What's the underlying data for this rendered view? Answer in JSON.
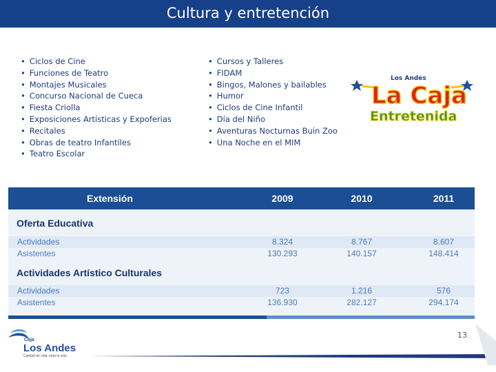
{
  "slide": {
    "title": "Cultura y entretención",
    "page_number": "13"
  },
  "left_list": [
    "Ciclos de Cine",
    "Funciones de Teatro",
    "Montajes Musicales",
    "Concurso Nacional de Cueca",
    "Fiesta Criolla",
    "Exposiciones Artísticas y Expoferias",
    "Recitales",
    "Obras de teatro Infantiles",
    "Teatro Escolar"
  ],
  "right_list": [
    "Cursos y Talleres",
    "FIDAM",
    "Bingos, Malones y bailables",
    "Humor",
    "Ciclos de Cine Infantil",
    "Día del Niño",
    "Aventuras Nocturnas Buin Zoo",
    "Una Noche en el MIM"
  ],
  "logo": {
    "small_text": "Los Andes",
    "main_text": "La Caja",
    "sub_text": "Entretenida",
    "colors": {
      "red": "#d7261e",
      "yellow": "#f7c515",
      "blue": "#1f4fa3",
      "green": "#2e9a3c",
      "purple": "#7b2d8e"
    }
  },
  "table": {
    "headers": [
      "Extensión",
      "2009",
      "2010",
      "2011"
    ],
    "sections": [
      {
        "title": "Oferta Educativa",
        "rows": [
          {
            "label": "Actividades",
            "values": [
              "8.324",
              "8.767",
              "8.607"
            ]
          },
          {
            "label": "Asistentes",
            "values": [
              "130.293",
              "140.157",
              "148.414"
            ]
          }
        ]
      },
      {
        "title": "Actividades Artístico Culturales",
        "rows": [
          {
            "label": "Actividades",
            "values": [
              "723",
              "1.216",
              "576"
            ]
          },
          {
            "label": "Asistentes",
            "values": [
              "136.930",
              "282.127",
              "294.174"
            ]
          }
        ]
      }
    ]
  },
  "footer": {
    "brand_small": "Caja",
    "brand_name": "Los Andes",
    "tagline": "Calidad de vida, toda la vida"
  },
  "colors": {
    "title_bg": "#17408a",
    "table_header": "#1b4e94",
    "table_text": "#4a7bc0",
    "section_text": "#17356e"
  }
}
